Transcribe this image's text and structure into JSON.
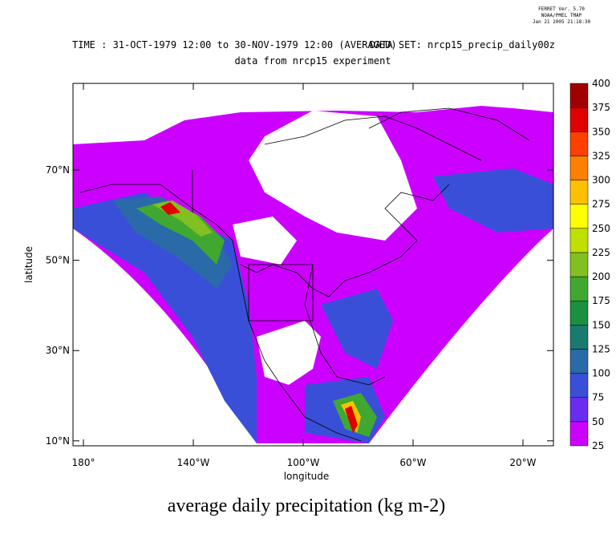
{
  "header": {
    "stamp": [
      "FERRET Ver. 5.70",
      "NOAA/PMEL TMAP",
      "Jan 21 2005 21:18:30"
    ],
    "time": "TIME : 31-OCT-1979 12:00 to 30-NOV-1979 12:00 (AVERAGED)",
    "dataset": "DATA SET: nrcp15_precip_daily00z",
    "subtitle": "data from nrcp15 experiment"
  },
  "map": {
    "xlabel": "longitude",
    "ylabel": "latitude",
    "xlim": [
      -183.8,
      -8.9
    ],
    "ylim": [
      8.9,
      89.2
    ],
    "xticks": [
      {
        "value": -180,
        "label": "180°"
      },
      {
        "value": -140,
        "label": "140°W"
      },
      {
        "value": -100,
        "label": "100°W"
      },
      {
        "value": -60,
        "label": "60°W"
      },
      {
        "value": -20,
        "label": "20°W"
      }
    ],
    "yticks": [
      {
        "value": 10,
        "label": "10°N"
      },
      {
        "value": 30,
        "label": "30°N"
      },
      {
        "value": 50,
        "label": "50°N"
      },
      {
        "value": 70,
        "label": "70°N"
      }
    ],
    "caption": "average daily precipitation (kg m-2)"
  },
  "colorbar": {
    "levels": [
      25,
      50,
      75,
      100,
      125,
      150,
      175,
      200,
      225,
      250,
      275,
      300,
      325,
      350,
      375,
      400
    ],
    "colors": [
      "#cc00ff",
      "#6a2cf0",
      "#3a4fd8",
      "#2a6aa8",
      "#1a7a70",
      "#1a9040",
      "#40a830",
      "#80c020",
      "#c0e000",
      "#ffff00",
      "#ffc000",
      "#ff8000",
      "#ff4000",
      "#e00000",
      "#a00000"
    ]
  }
}
